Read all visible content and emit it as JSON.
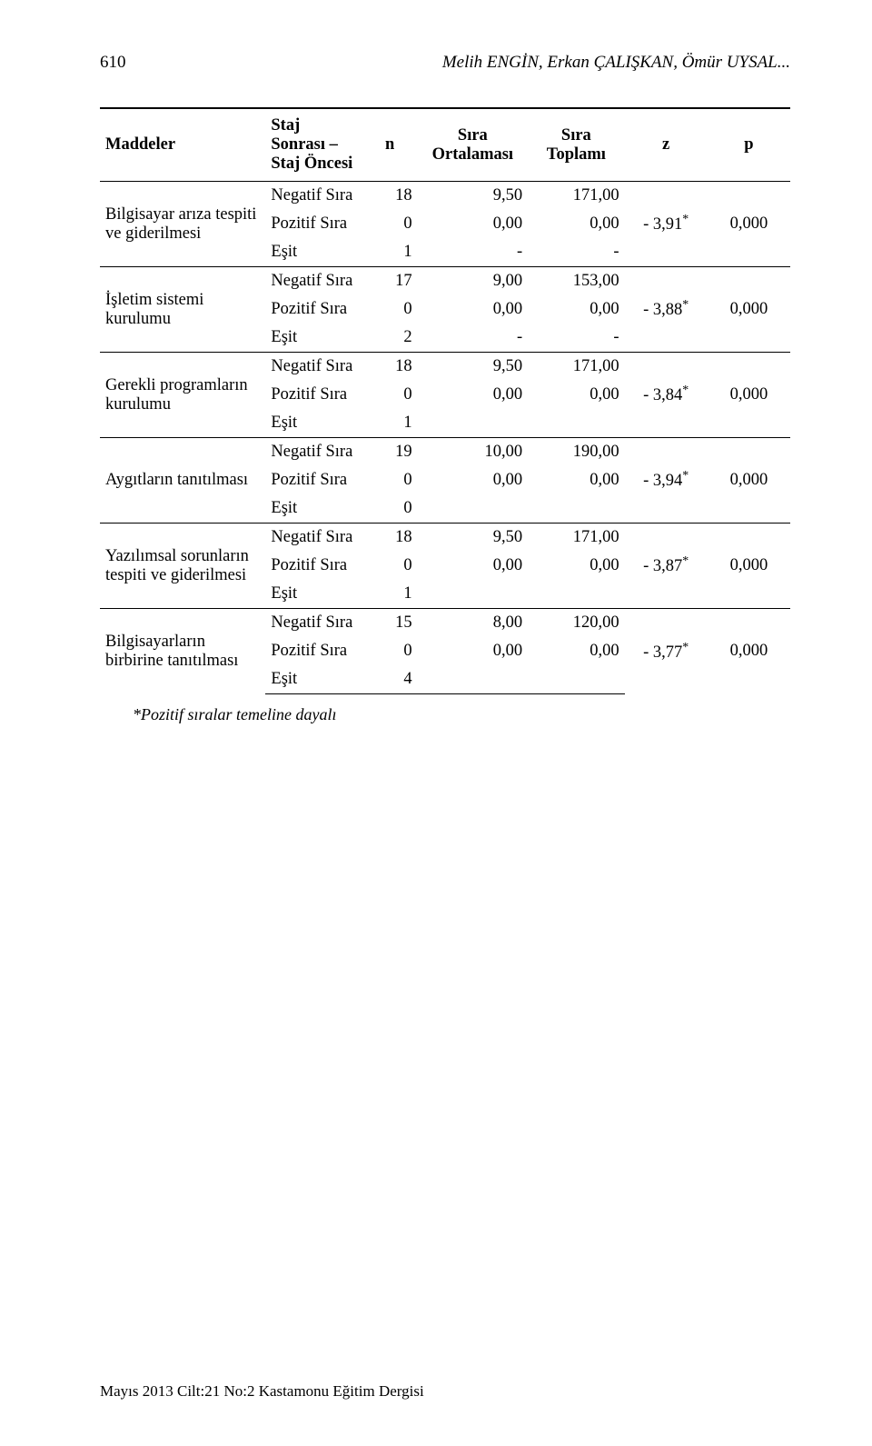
{
  "header": {
    "page_number": "610",
    "authors": "Melih ENGİN, Erkan ÇALIŞKAN, Ömür UYSAL..."
  },
  "table": {
    "columns": {
      "maddeler": "Maddeler",
      "staj": "Staj Sonrası – Staj Öncesi",
      "n": "n",
      "ortalama": "Sıra Ortalaması",
      "toplam": "Sıra Toplamı",
      "z": "z",
      "p": "p"
    },
    "groups": [
      {
        "label": "Bilgisayar arıza tespiti ve giderilmesi",
        "z": "- 3,91",
        "z_sup": "*",
        "p": "0,000",
        "rows": [
          {
            "r": "Negatif Sıra",
            "n": "18",
            "ort": "9,50",
            "top": "171,00"
          },
          {
            "r": "Pozitif Sıra",
            "n": "0",
            "ort": "0,00",
            "top": "0,00"
          },
          {
            "r": "Eşit",
            "n": "1",
            "ort": "-",
            "top": "-"
          }
        ]
      },
      {
        "label": "İşletim sistemi kurulumu",
        "z": "- 3,88",
        "z_sup": "*",
        "p": "0,000",
        "rows": [
          {
            "r": "Negatif Sıra",
            "n": "17",
            "ort": "9,00",
            "top": "153,00"
          },
          {
            "r": "Pozitif Sıra",
            "n": "0",
            "ort": "0,00",
            "top": "0,00"
          },
          {
            "r": "Eşit",
            "n": "2",
            "ort": "-",
            "top": "-"
          }
        ]
      },
      {
        "label": "Gerekli programların kurulumu",
        "z": "- 3,84",
        "z_sup": "*",
        "p": "0,000",
        "rows": [
          {
            "r": "Negatif Sıra",
            "n": "18",
            "ort": "9,50",
            "top": "171,00"
          },
          {
            "r": "Pozitif Sıra",
            "n": "0",
            "ort": "0,00",
            "top": "0,00"
          },
          {
            "r": "Eşit",
            "n": "1",
            "ort": "",
            "top": ""
          }
        ]
      },
      {
        "label": "Aygıtların tanıtılması",
        "z": "- 3,94",
        "z_sup": "*",
        "p": "0,000",
        "rows": [
          {
            "r": "Negatif Sıra",
            "n": "19",
            "ort": "10,00",
            "top": "190,00"
          },
          {
            "r": "Pozitif Sıra",
            "n": "0",
            "ort": "0,00",
            "top": "0,00"
          },
          {
            "r": "Eşit",
            "n": "0",
            "ort": "",
            "top": ""
          }
        ]
      },
      {
        "label": "Yazılımsal sorunların tespiti ve giderilmesi",
        "z": "- 3,87",
        "z_sup": "*",
        "p": "0,000",
        "rows": [
          {
            "r": "Negatif Sıra",
            "n": "18",
            "ort": "9,50",
            "top": "171,00"
          },
          {
            "r": "Pozitif Sıra",
            "n": "0",
            "ort": "0,00",
            "top": "0,00"
          },
          {
            "r": "Eşit",
            "n": "1",
            "ort": "",
            "top": ""
          }
        ]
      },
      {
        "label": "Bilgisayarların birbirine tanıtılması",
        "z": "- 3,77",
        "z_sup": "*",
        "p": "0,000",
        "rows": [
          {
            "r": "Negatif Sıra",
            "n": "15",
            "ort": "8,00",
            "top": "120,00"
          },
          {
            "r": "Pozitif Sıra",
            "n": "0",
            "ort": "0,00",
            "top": "0,00"
          },
          {
            "r": "Eşit",
            "n": "4",
            "ort": "",
            "top": ""
          }
        ]
      }
    ]
  },
  "footnote": "*Pozitif sıralar temeline dayalı",
  "footer": "Mayıs 2013 Cilt:21 No:2 Kastamonu Eğitim Dergisi"
}
